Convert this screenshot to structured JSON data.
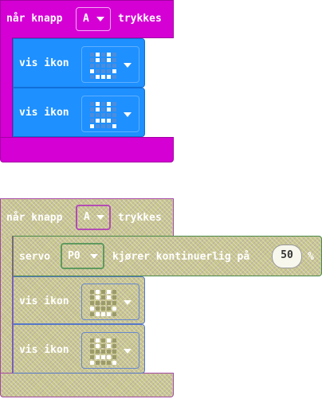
{
  "block1": {
    "hat_prefix": "når knapp",
    "button_value": "A",
    "hat_suffix": "trykkes",
    "show1_label": "vis ikon",
    "show2_label": "vis ikon",
    "icon1_pattern": [
      [
        0,
        1,
        0,
        1,
        0
      ],
      [
        0,
        1,
        0,
        1,
        0
      ],
      [
        0,
        0,
        0,
        0,
        0
      ],
      [
        1,
        0,
        0,
        0,
        1
      ],
      [
        0,
        1,
        1,
        1,
        0
      ]
    ],
    "icon2_pattern": [
      [
        0,
        1,
        0,
        1,
        0
      ],
      [
        0,
        1,
        0,
        1,
        0
      ],
      [
        0,
        0,
        0,
        0,
        0
      ],
      [
        0,
        1,
        1,
        1,
        0
      ],
      [
        1,
        0,
        0,
        0,
        1
      ]
    ],
    "colors": {
      "hat": "#d400d4",
      "control": "#1e90ff"
    }
  },
  "block2": {
    "hat_prefix": "når knapp",
    "button_value": "A",
    "hat_suffix": "trykkes",
    "servo_label": "servo",
    "pin_value": "P0",
    "servo_text": "kjører kontinuerlig på",
    "speed_value": "50",
    "percent": "%",
    "show1_label": "vis ikon",
    "show2_label": "vis ikon",
    "icon1_pattern": [
      [
        0,
        1,
        0,
        1,
        0
      ],
      [
        0,
        1,
        0,
        1,
        0
      ],
      [
        0,
        0,
        0,
        0,
        0
      ],
      [
        1,
        0,
        0,
        0,
        1
      ],
      [
        0,
        1,
        1,
        1,
        0
      ]
    ],
    "icon2_pattern": [
      [
        0,
        1,
        0,
        1,
        0
      ],
      [
        0,
        1,
        0,
        1,
        0
      ],
      [
        0,
        0,
        0,
        0,
        0
      ],
      [
        0,
        1,
        1,
        1,
        0
      ],
      [
        1,
        0,
        0,
        0,
        1
      ]
    ],
    "colors": {
      "disabled_fill": "#c8c88a"
    }
  }
}
